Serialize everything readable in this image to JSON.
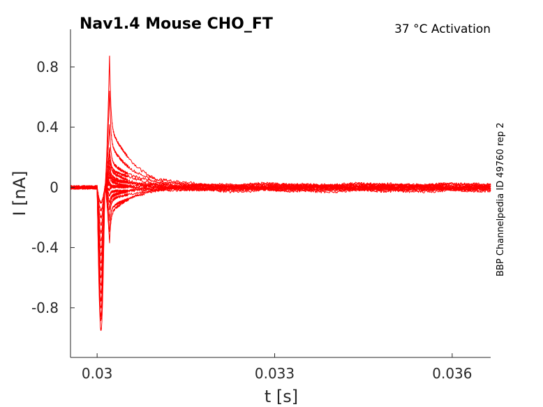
{
  "chart_data": {
    "type": "line",
    "title": "Nav1.4  Mouse  CHO_FT",
    "subtitle": "37 °C  Activation",
    "side_note": "BBP Channelpedia ID 49760 rep 2",
    "xlabel": "t [s]",
    "ylabel": "I [nA]",
    "xlim": [
      0.02955,
      0.03665
    ],
    "ylim": [
      -1.13,
      1.05
    ],
    "xticks": [
      0.03,
      0.033,
      0.036
    ],
    "xtick_labels": [
      "0.03",
      "0.033",
      "0.036"
    ],
    "yticks": [
      -0.8,
      -0.4,
      0,
      0.4,
      0.8
    ],
    "ytick_labels": [
      "-0.8",
      "-0.4",
      "0",
      "0.4",
      "0.8"
    ],
    "grid": false,
    "series_color": "#ff0000",
    "stimulus_times": {
      "baseline_end": 0.03,
      "onset": 0.03013,
      "peak_time": 0.03021
    },
    "series": [
      {
        "peak": 0.88,
        "dip": -0.95,
        "drift": -0.005
      },
      {
        "peak": 0.65,
        "dip": -0.88,
        "drift": 0.012
      },
      {
        "peak": 0.42,
        "dip": -0.85,
        "drift": -0.015
      },
      {
        "peak": 0.27,
        "dip": -0.8,
        "drift": 0.008
      },
      {
        "peak": 0.22,
        "dip": -0.75,
        "drift": -0.008
      },
      {
        "peak": 0.18,
        "dip": -0.7,
        "drift": 0.015
      },
      {
        "peak": 0.14,
        "dip": -0.65,
        "drift": -0.012
      },
      {
        "peak": 0.1,
        "dip": -0.6,
        "drift": 0.005
      },
      {
        "peak": 0.07,
        "dip": -0.55,
        "drift": -0.02
      },
      {
        "peak": 0.04,
        "dip": -0.5,
        "drift": 0.01
      },
      {
        "peak": 0.02,
        "dip": -0.45,
        "drift": -0.003
      },
      {
        "peak": -0.02,
        "dip": -0.4,
        "drift": 0.006
      },
      {
        "peak": -0.06,
        "dip": -0.35,
        "drift": -0.01
      },
      {
        "peak": -0.1,
        "dip": -0.3,
        "drift": 0.004
      },
      {
        "peak": -0.15,
        "dip": -0.25,
        "drift": -0.006
      },
      {
        "peak": -0.22,
        "dip": -0.2,
        "drift": 0.012
      },
      {
        "peak": -0.3,
        "dip": -0.15,
        "drift": -0.004
      },
      {
        "peak": -0.37,
        "dip": -0.1,
        "drift": 0.002
      }
    ]
  }
}
